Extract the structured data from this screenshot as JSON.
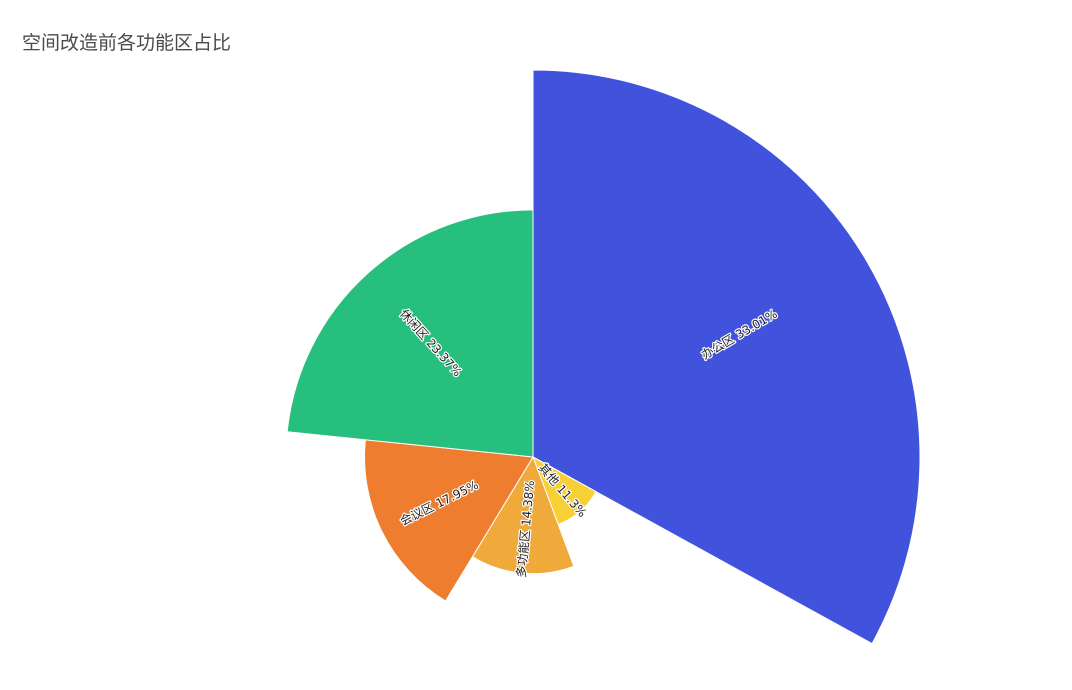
{
  "chart_data": {
    "type": "pie",
    "variant": "nightingale-rose",
    "title": "空间改造前各功能区占比",
    "series": [
      {
        "name": "办公区",
        "value": 33.01,
        "label": "办公区  33.01%",
        "color": "#4152DC"
      },
      {
        "name": "其他",
        "value": 11.3,
        "label": "其他  11.3%",
        "color": "#F7D035"
      },
      {
        "name": "多功能区",
        "value": 14.38,
        "label": "多功能区  14.38%",
        "color": "#F0AA3C"
      },
      {
        "name": "会议区",
        "value": 17.95,
        "label": "会议区  17.95%",
        "color": "#EE7D30"
      },
      {
        "name": "休闲区",
        "value": 23.37,
        "label": "休闲区  23.37%",
        "color": "#27BF7E"
      }
    ],
    "legend": "none"
  }
}
